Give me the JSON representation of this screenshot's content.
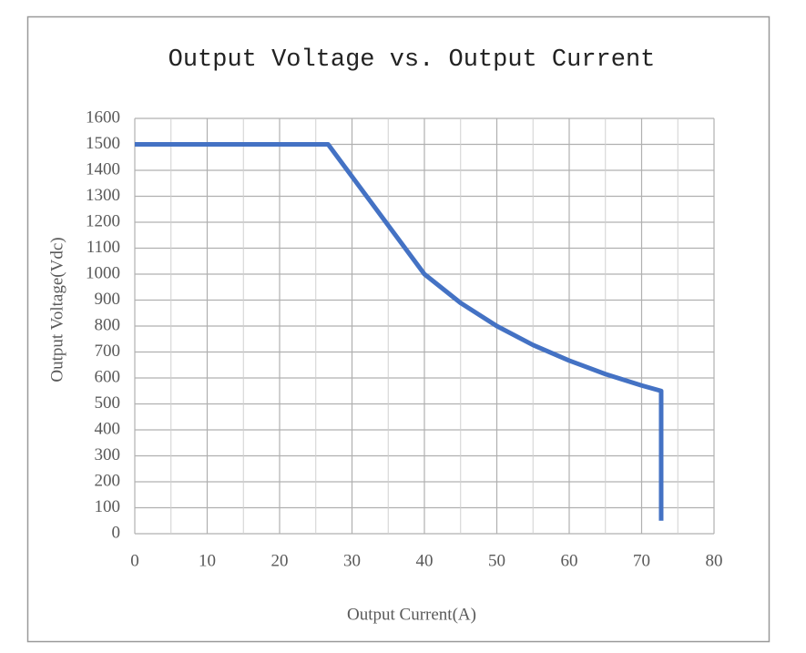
{
  "chart_data": {
    "type": "line",
    "title": "Output Voltage vs. Output Current",
    "x_label": "Output Current(A)",
    "y_label": "Output Voltage(Vdc)",
    "xlim": [
      0,
      80
    ],
    "xticks": [
      0,
      10,
      20,
      30,
      40,
      50,
      60,
      70,
      80
    ],
    "ylim": [
      0,
      1600
    ],
    "yticks": [
      0,
      100,
      200,
      300,
      400,
      500,
      600,
      700,
      800,
      900,
      1000,
      1100,
      1200,
      1300,
      1400,
      1500,
      1600
    ],
    "grid": true,
    "series": [
      {
        "color": "#4472c4",
        "x": [
          0,
          26.7,
          40,
          45,
          50,
          55,
          60,
          65,
          70,
          72.7,
          72.7
        ],
        "values": [
          1500,
          1500,
          1000,
          889,
          800,
          727,
          667,
          615,
          571,
          550,
          50
        ]
      }
    ]
  }
}
